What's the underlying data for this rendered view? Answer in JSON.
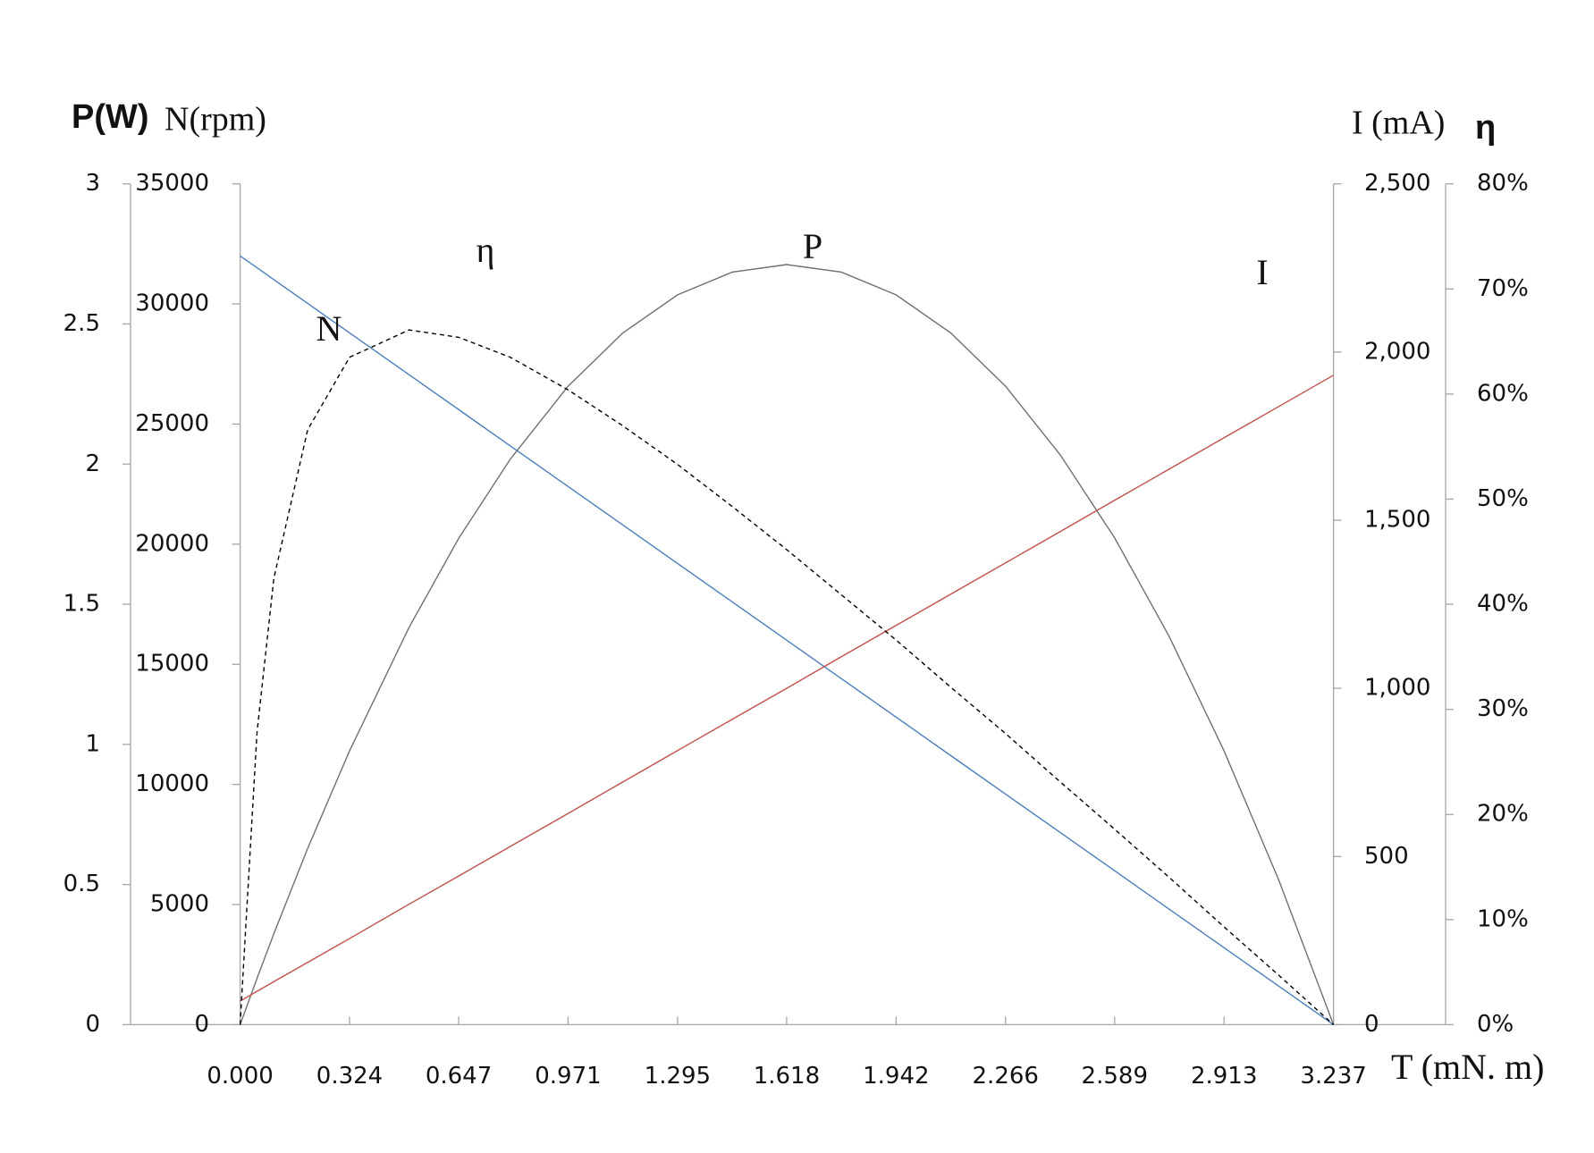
{
  "chart_data": {
    "type": "line",
    "x_label": "T (mN. m)",
    "y_label": "P(W)",
    "y2_label": "N(rpm)",
    "y3_label": "I (mA)",
    "y4_label": "η",
    "x": [
      0,
      0.05,
      0.1,
      0.2,
      0.324,
      0.5,
      0.647,
      0.8,
      0.971,
      1.132,
      1.295,
      1.457,
      1.618,
      1.78,
      1.942,
      2.104,
      2.266,
      2.428,
      2.589,
      2.751,
      2.913,
      3.075,
      3.237
    ],
    "xlim": [
      0,
      3.237
    ],
    "xticks": [
      {
        "value": 0,
        "label": "0.000"
      },
      0.324,
      0.647,
      0.971,
      1.295,
      1.618,
      1.942,
      2.266,
      2.589,
      2.913,
      3.237
    ],
    "ylim": [
      0,
      3
    ],
    "yticks": [
      0,
      0.5,
      1,
      1.5,
      2,
      2.5,
      3
    ],
    "y2lim": [
      0,
      35000
    ],
    "y2ticks": [
      0,
      5000,
      10000,
      15000,
      20000,
      25000,
      30000,
      35000
    ],
    "y3lim": [
      0,
      2500
    ],
    "y3ticks": [
      0,
      500,
      {
        "value": 1000,
        "label": "1,000"
      },
      {
        "value": 1500,
        "label": "1,500"
      },
      {
        "value": 2000,
        "label": "2,000"
      },
      {
        "value": 2500,
        "label": "2,500"
      }
    ],
    "y4lim": [
      0,
      80
    ],
    "y4ticks": [
      {
        "value": 0,
        "label": "0%"
      },
      {
        "value": 10,
        "label": "10%"
      },
      {
        "value": 20,
        "label": "20%"
      },
      {
        "value": 30,
        "label": "30%"
      },
      {
        "value": 40,
        "label": "40%"
      },
      {
        "value": 50,
        "label": "50%"
      },
      {
        "value": 60,
        "label": "60%"
      },
      {
        "value": 70,
        "label": "70%"
      },
      {
        "value": 80,
        "label": "80%"
      }
    ],
    "series": [
      {
        "name": "N",
        "axis": "y2",
        "color": "#4a7ebb",
        "dashed": false,
        "values": [
          32000,
          31506,
          31011,
          30023,
          28797,
          27057,
          25604,
          24091,
          22401,
          20809,
          19198,
          17597,
          16005,
          14403,
          12802,
          11200,
          9599,
          7997,
          6406,
          4804,
          3203,
          1602,
          0
        ]
      },
      {
        "name": "P",
        "axis": "y",
        "color": "#707070",
        "dashed": false,
        "values": [
          0,
          0.165,
          0.325,
          0.629,
          0.977,
          1.417,
          1.735,
          2.018,
          2.278,
          2.467,
          2.604,
          2.685,
          2.712,
          2.685,
          2.604,
          2.468,
          2.278,
          2.033,
          1.737,
          1.384,
          0.977,
          0.516,
          0
        ]
      },
      {
        "name": "I",
        "axis": "y3",
        "color": "#c0504d",
        "dashed": false,
        "values": [
          70,
          99,
          128,
          185,
          256,
          358,
          442,
          530,
          628,
          721,
          815,
          908,
          1000,
          1094,
          1187,
          1280,
          1373,
          1466,
          1559,
          1652,
          1745,
          1838,
          1931
        ]
      },
      {
        "name": "η",
        "axis": "y4",
        "color": "#000000",
        "dashed": true,
        "values": [
          0,
          27.8,
          42.5,
          56.6,
          63.5,
          66.1,
          65.4,
          63.5,
          60.4,
          57.0,
          53.3,
          49.3,
          45.2,
          40.9,
          36.6,
          32.1,
          27.7,
          23.1,
          18.6,
          14.0,
          9.3,
          4.7,
          0
        ]
      }
    ]
  }
}
